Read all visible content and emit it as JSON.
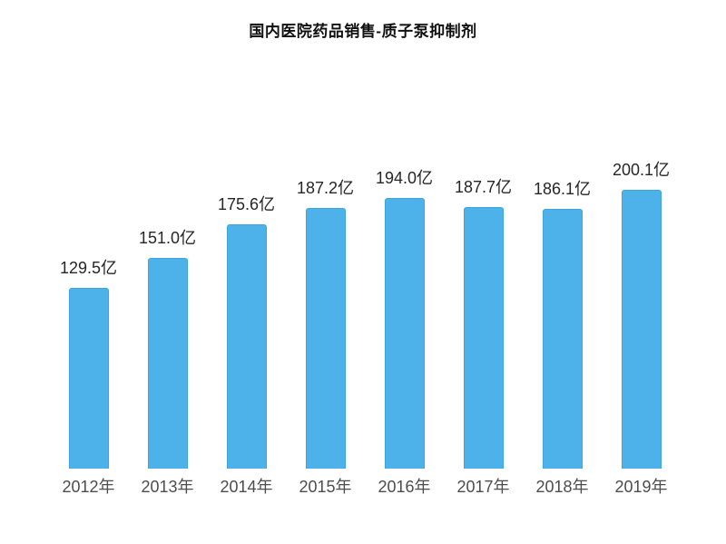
{
  "page": {
    "background": "#ffffff"
  },
  "chart_data": {
    "type": "bar",
    "title": "国内医院药品销售-质子泵抑制剂",
    "categories": [
      "2012年",
      "2013年",
      "2014年",
      "2015年",
      "2016年",
      "2017年",
      "2018年",
      "2019年"
    ],
    "values": [
      129.5,
      151.0,
      175.6,
      187.2,
      194.0,
      187.7,
      186.1,
      200.1
    ],
    "data_labels": [
      "129.5亿",
      "151.0亿",
      "175.6亿",
      "187.2亿",
      "194.0亿",
      "187.7亿",
      "186.1亿",
      "200.1亿"
    ],
    "unit": "亿",
    "xlabel": "",
    "ylabel": "",
    "ylim": [
      0,
      210
    ],
    "grid": false,
    "legend": false,
    "axis_lines": false,
    "colors": {
      "bar_fill": "#4DB1EA",
      "bar_border": "#3CA4DE",
      "value_label": "#262626",
      "category_label": "#4d4d4d",
      "title": "#111111"
    }
  }
}
